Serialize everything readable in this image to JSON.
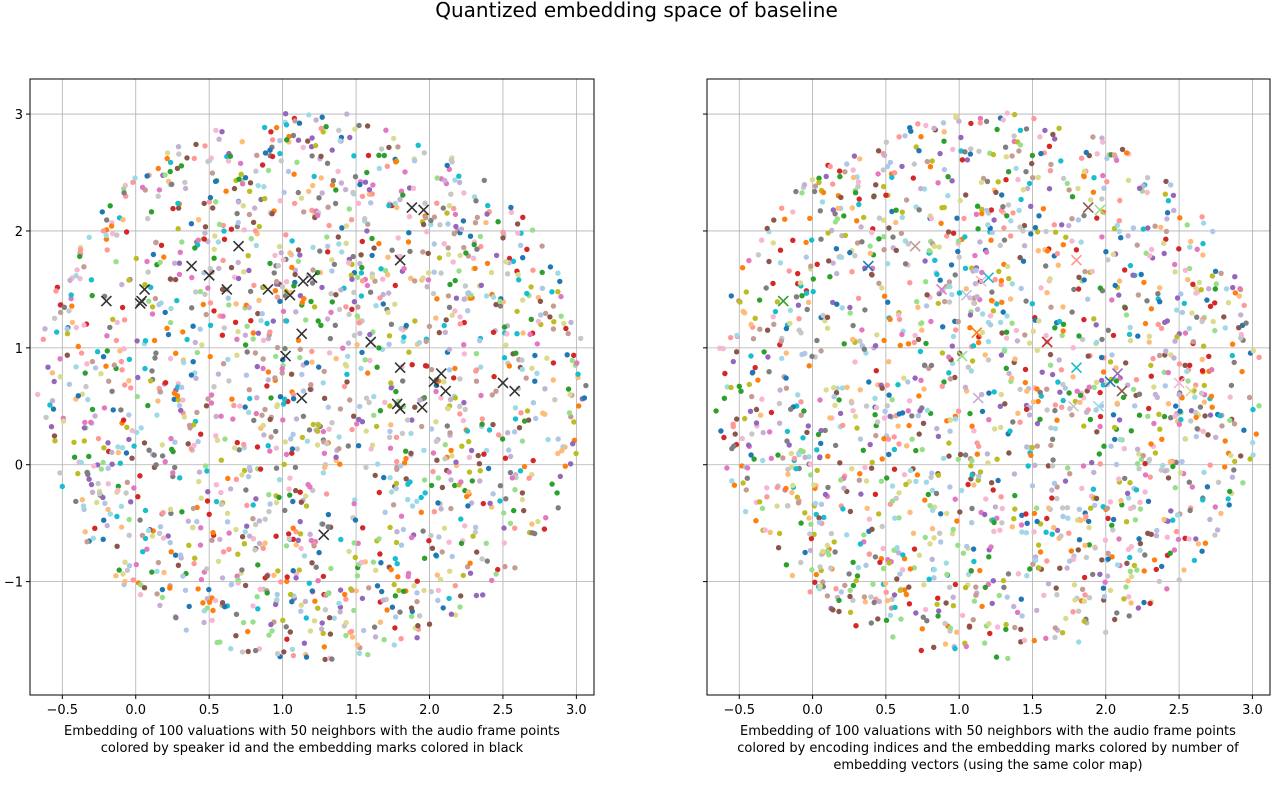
{
  "figure": {
    "title": "Quantized embedding space of baseline"
  },
  "chart_data": [
    {
      "type": "scatter",
      "panel": "left",
      "xlabel": "Embedding of 100 valuations with 50 neighbors with the audio frame points colored by speaker id and the embedding marks colored in black",
      "ylabel": "",
      "xlim": [
        -0.72,
        3.12
      ],
      "ylim": [
        -1.97,
        3.3
      ],
      "xticks": [
        "−0.5",
        "0.0",
        "0.5",
        "1.0",
        "1.5",
        "2.0",
        "2.5",
        "3.0"
      ],
      "xtick_values": [
        -0.5,
        0.0,
        0.5,
        1.0,
        1.5,
        2.0,
        2.5,
        3.0
      ],
      "yticks": [
        "−1",
        "0",
        "1",
        "2",
        "3"
      ],
      "ytick_values": [
        -1,
        0,
        1,
        2,
        3
      ],
      "grid": true,
      "point_cloud": {
        "count": 1800,
        "center": [
          1.2,
          0.67
        ],
        "radius_x": 1.87,
        "radius_y": 2.35,
        "colored_by": "speaker id"
      },
      "marks_color": "#333333",
      "marks": [
        [
          -0.2,
          1.4
        ],
        [
          0.03,
          1.38
        ],
        [
          0.06,
          1.5
        ],
        [
          0.04,
          1.4
        ],
        [
          0.38,
          1.7
        ],
        [
          0.5,
          1.62
        ],
        [
          0.62,
          1.5
        ],
        [
          0.7,
          1.87
        ],
        [
          0.9,
          1.5
        ],
        [
          1.05,
          1.45
        ],
        [
          1.14,
          1.57
        ],
        [
          1.2,
          1.6
        ],
        [
          1.02,
          0.93
        ],
        [
          1.13,
          1.12
        ],
        [
          1.13,
          0.57
        ],
        [
          1.28,
          -0.6
        ],
        [
          1.6,
          1.05
        ],
        [
          1.8,
          1.75
        ],
        [
          1.88,
          2.2
        ],
        [
          1.96,
          2.18
        ],
        [
          1.8,
          0.83
        ],
        [
          1.78,
          0.52
        ],
        [
          1.8,
          0.48
        ],
        [
          1.95,
          0.49
        ],
        [
          2.03,
          0.71
        ],
        [
          2.08,
          0.78
        ],
        [
          2.11,
          0.63
        ],
        [
          2.5,
          0.7
        ],
        [
          2.58,
          0.63
        ]
      ]
    },
    {
      "type": "scatter",
      "panel": "right",
      "xlabel": "Embedding of 100 valuations with 50 neighbors with the audio frame points colored by encoding indices and the embedding marks colored by number of embedding vectors (using the same color map)",
      "ylabel": "",
      "xlim": [
        -0.72,
        3.12
      ],
      "ylim": [
        -1.97,
        3.3
      ],
      "xticks": [
        "−0.5",
        "0.0",
        "0.5",
        "1.0",
        "1.5",
        "2.0",
        "2.5",
        "3.0"
      ],
      "xtick_values": [
        -0.5,
        0.0,
        0.5,
        1.0,
        1.5,
        2.0,
        2.5,
        3.0
      ],
      "yticks": [
        "−1",
        "0",
        "1",
        "2",
        "3"
      ],
      "ytick_values": [
        -1,
        0,
        1,
        2,
        3
      ],
      "ytick_labels_visible": false,
      "grid": true,
      "point_cloud": {
        "count": 1800,
        "center": [
          1.2,
          0.67
        ],
        "radius_x": 1.87,
        "radius_y": 2.35,
        "colored_by": "encoding indices"
      },
      "marks_colored_by": "number of embedding vectors",
      "marks": [
        {
          "x": -0.2,
          "y": 1.4,
          "color": "#2ca02c"
        },
        {
          "x": 0.38,
          "y": 1.7,
          "color": "#1f77b4"
        },
        {
          "x": 0.88,
          "y": 1.5,
          "color": "#e377c2"
        },
        {
          "x": 0.7,
          "y": 1.87,
          "color": "#c49c94"
        },
        {
          "x": 1.05,
          "y": 1.45,
          "color": "#aec7e8"
        },
        {
          "x": 1.15,
          "y": 1.57,
          "color": "#f7b6d2"
        },
        {
          "x": 1.2,
          "y": 1.6,
          "color": "#17becf"
        },
        {
          "x": 1.12,
          "y": 1.13,
          "color": "#ff7f0e"
        },
        {
          "x": 1.02,
          "y": 0.93,
          "color": "#98df8a"
        },
        {
          "x": 1.13,
          "y": 0.57,
          "color": "#c5b0d5"
        },
        {
          "x": 1.6,
          "y": 1.05,
          "color": "#d62728"
        },
        {
          "x": 1.8,
          "y": 1.75,
          "color": "#ff9896"
        },
        {
          "x": 1.88,
          "y": 2.2,
          "color": "#8c564b"
        },
        {
          "x": 1.96,
          "y": 2.18,
          "color": "#98df8a"
        },
        {
          "x": 1.8,
          "y": 0.83,
          "color": "#17becf"
        },
        {
          "x": 1.78,
          "y": 0.5,
          "color": "#c7c7c7"
        },
        {
          "x": 1.95,
          "y": 0.5,
          "color": "#9edae5"
        },
        {
          "x": 2.03,
          "y": 0.71,
          "color": "#1f77b4"
        },
        {
          "x": 2.08,
          "y": 0.78,
          "color": "#9467bd"
        },
        {
          "x": 2.11,
          "y": 0.63,
          "color": "#8c564b"
        },
        {
          "x": 2.5,
          "y": 0.7,
          "color": "#f7b6d2"
        },
        {
          "x": 2.58,
          "y": 0.63,
          "color": "#dbdb8d"
        }
      ]
    }
  ],
  "palette": [
    "#1f77b4",
    "#aec7e8",
    "#ff7f0e",
    "#ffbb78",
    "#2ca02c",
    "#98df8a",
    "#d62728",
    "#ff9896",
    "#9467bd",
    "#c5b0d5",
    "#8c564b",
    "#c49c94",
    "#e377c2",
    "#f7b6d2",
    "#7f7f7f",
    "#c7c7c7",
    "#bcbd22",
    "#dbdb8d",
    "#17becf",
    "#9edae5"
  ]
}
